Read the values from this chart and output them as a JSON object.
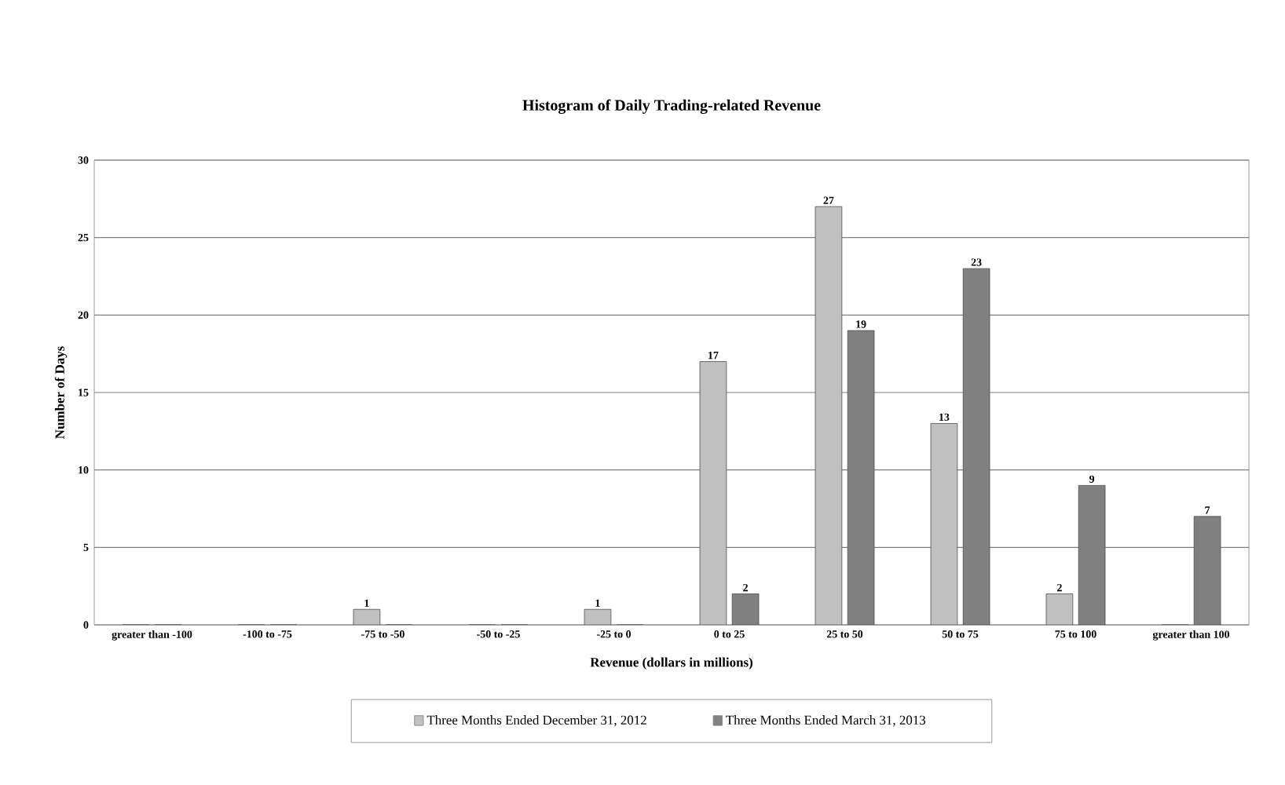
{
  "chart_data": {
    "type": "bar",
    "title": "Histogram of Daily Trading-related Revenue",
    "xlabel": "Revenue (dollars in millions)",
    "ylabel": "Number of Days",
    "categories": [
      "greater than -100",
      "-100 to -75",
      "-75 to -50",
      "-50 to -25",
      "-25 to 0",
      "0 to 25",
      "25 to 50",
      "50 to 75",
      "75 to 100",
      "greater than 100"
    ],
    "series": [
      {
        "name": "Three Months Ended December 31, 2012",
        "color": "#c0c0c0",
        "values": [
          0,
          0,
          1,
          0,
          1,
          17,
          27,
          13,
          2,
          0
        ],
        "value_labels": [
          null,
          null,
          "1",
          null,
          "1",
          "17",
          "27",
          "13",
          "2",
          null
        ]
      },
      {
        "name": "Three Months Ended March 31, 2013",
        "color": "#808080",
        "values": [
          0,
          0,
          0,
          0,
          0,
          2,
          19,
          23,
          9,
          7
        ],
        "value_labels": [
          null,
          null,
          null,
          null,
          null,
          "2",
          "19",
          "23",
          "9",
          "7"
        ]
      }
    ],
    "ylim": [
      0,
      30
    ],
    "yticks": [
      0,
      5,
      10,
      15,
      20,
      25,
      30
    ],
    "grid": "y",
    "legend": "bottom"
  }
}
